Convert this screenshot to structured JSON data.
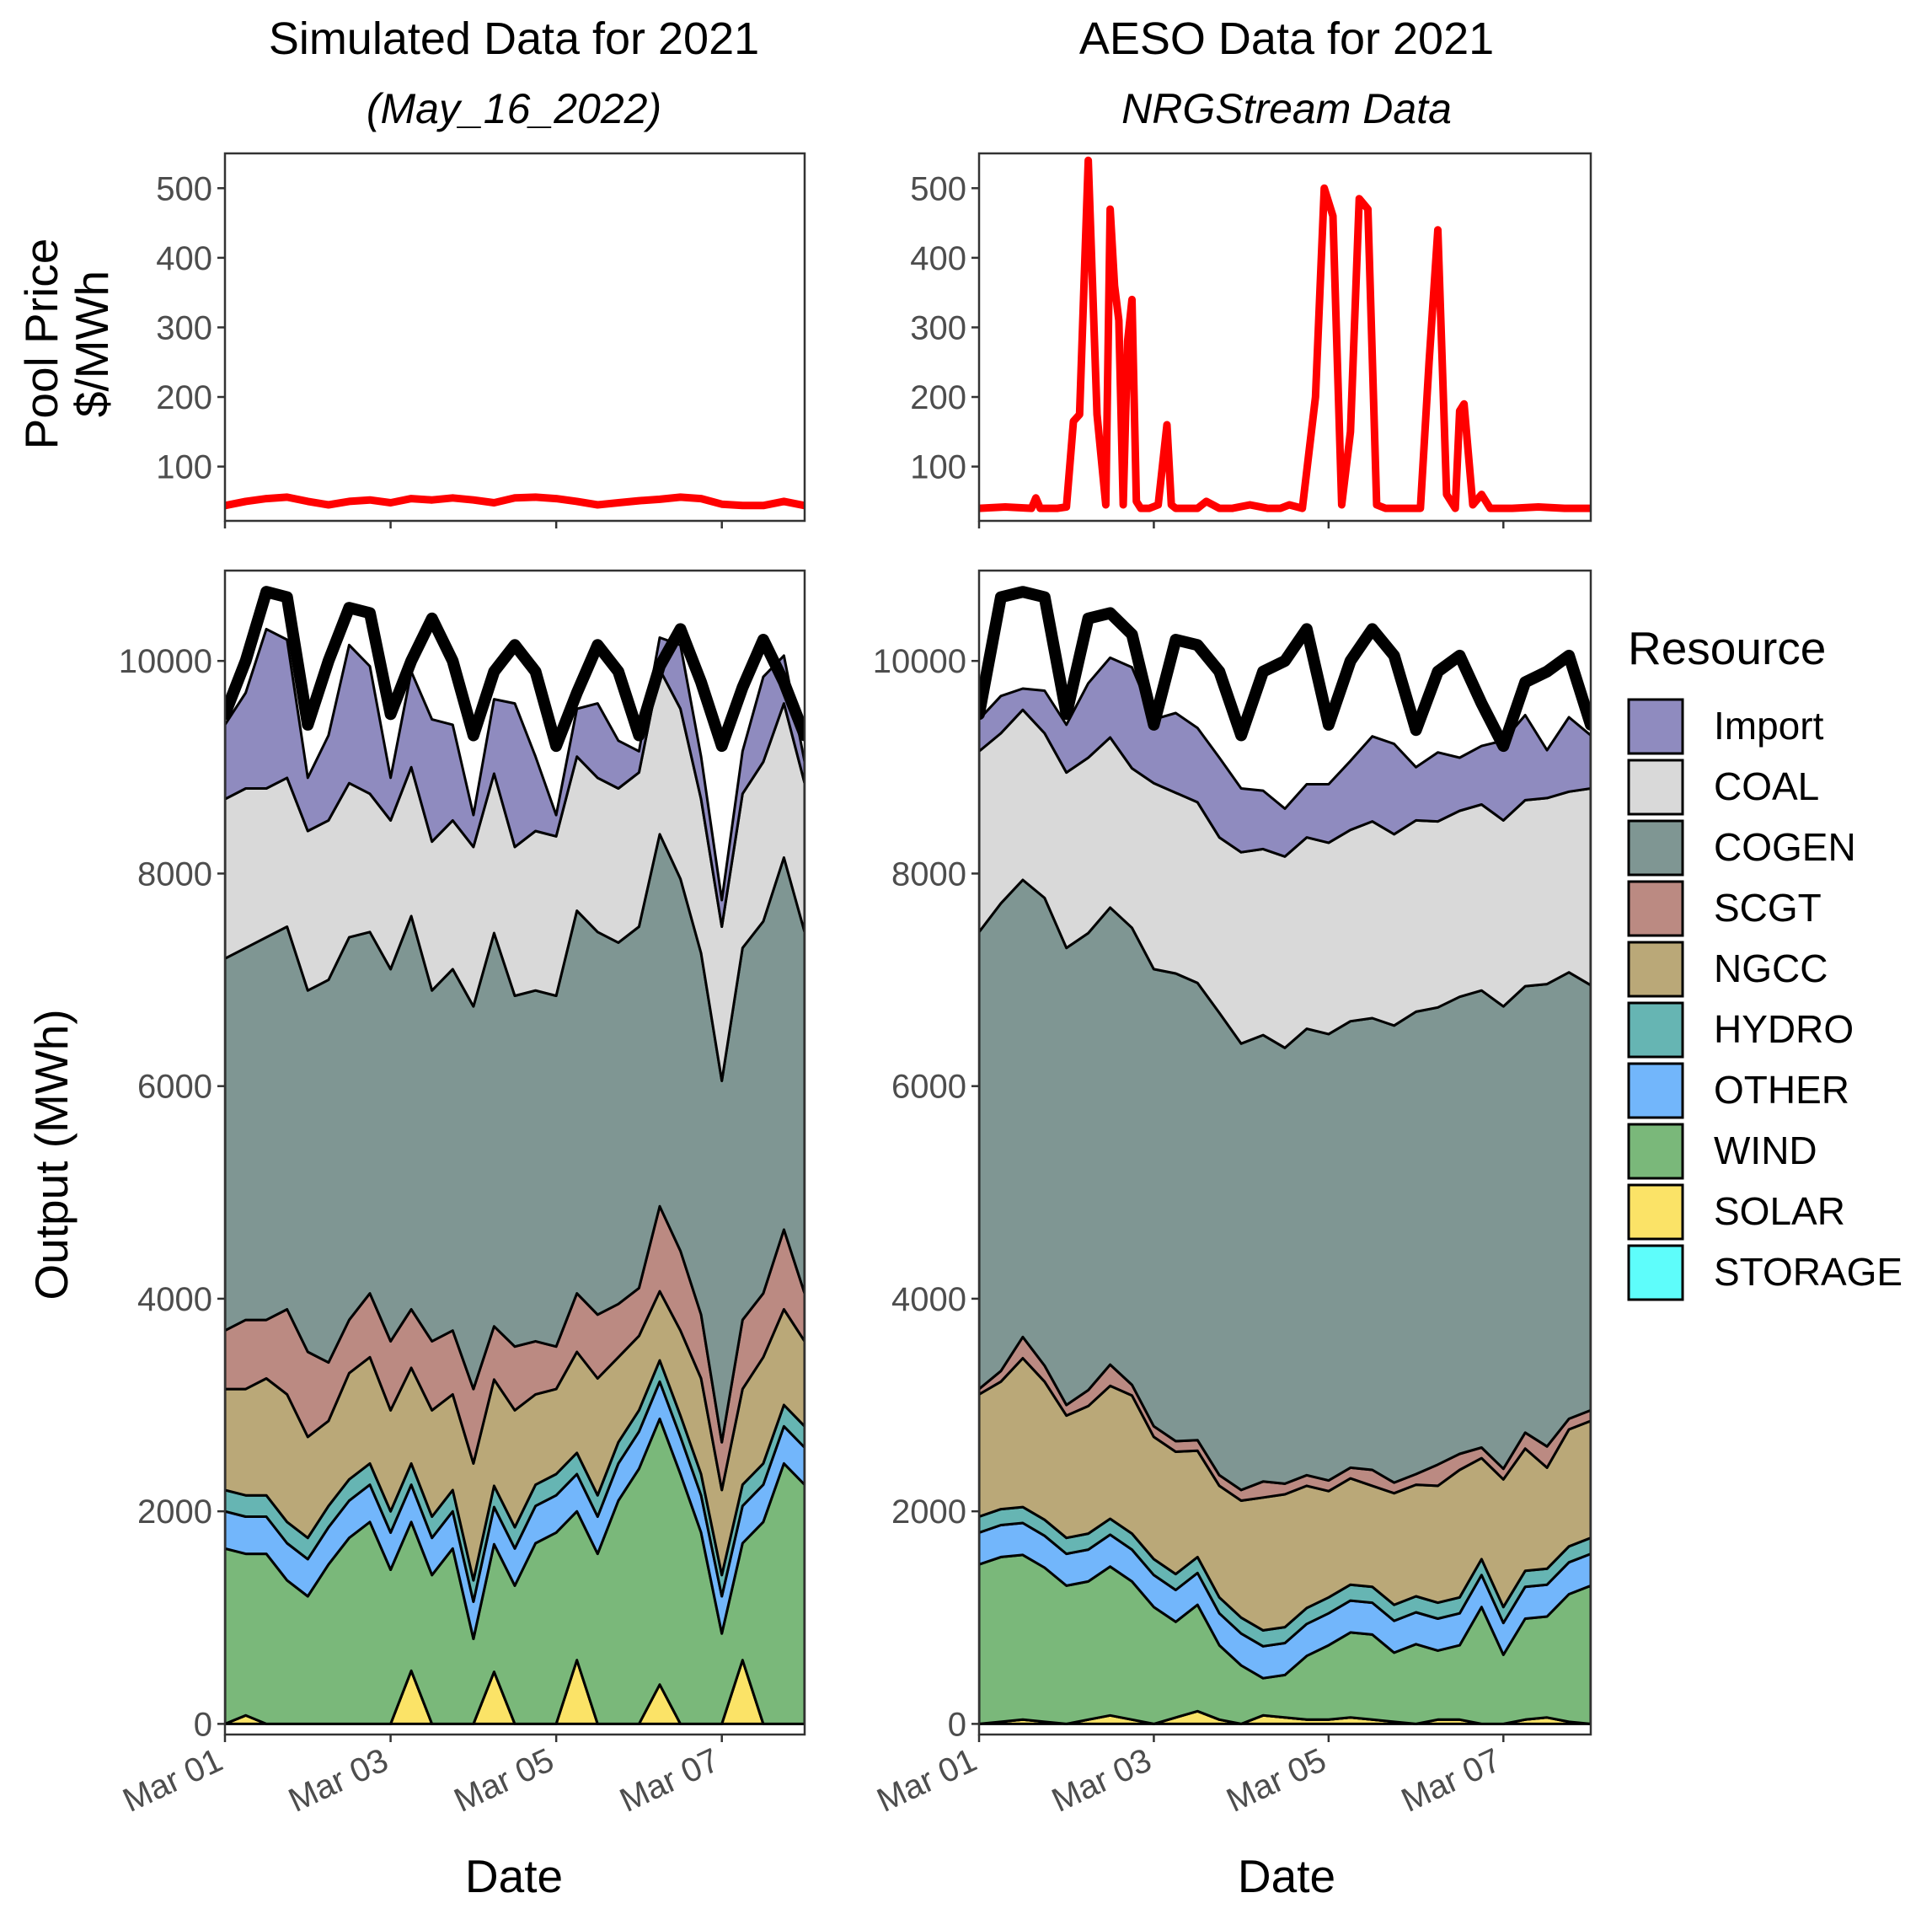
{
  "figure": {
    "left_title": "Simulated Data for 2021",
    "left_subtitle": "(May_16_2022)",
    "right_title": "AESO Data for 2021",
    "right_subtitle": "NRGStream Data",
    "price_ylabel_line1": "Pool Price",
    "price_ylabel_line2": "$/MWh",
    "output_ylabel": "Output (MWh)",
    "xlabel": "Date",
    "legend_title": "Resource"
  },
  "colors": {
    "Import": "#8f8bbf",
    "COAL": "#d9d9d9",
    "COGEN": "#7f9693",
    "SCGT": "#bb8a82",
    "NGCC": "#baa878",
    "HYDRO": "#66b5b3",
    "OTHER": "#72b6fb",
    "WIND": "#7ab87a",
    "SOLAR": "#fbe367",
    "STORAGE": "#5efdfb",
    "price": "#ff0000",
    "demand": "#000000"
  },
  "chart_data": [
    {
      "type": "line",
      "panel": "simulated-price",
      "title": "Simulated Data for 2021",
      "subtitle": "(May_16_2022)",
      "xlabel": "",
      "ylabel": "Pool Price $/MWh",
      "xlim": [
        0,
        7
      ],
      "ylim": [
        22,
        550
      ],
      "yticks": [
        100,
        200,
        300,
        400,
        500
      ],
      "xticks_days": [
        0,
        2,
        4,
        6
      ],
      "grid": false,
      "series": [
        {
          "x": [
            0,
            0.25,
            0.5,
            0.75,
            1,
            1.25,
            1.5,
            1.75,
            2,
            2.25,
            2.5,
            2.75,
            3,
            3.25,
            3.5,
            3.75,
            4,
            4.25,
            4.5,
            4.75,
            5,
            5.25,
            5.5,
            5.75,
            6,
            6.25,
            6.5,
            6.75,
            7
          ],
          "y": [
            44,
            50,
            54,
            56,
            50,
            45,
            50,
            52,
            48,
            54,
            52,
            55,
            52,
            48,
            55,
            56,
            54,
            50,
            45,
            48,
            51,
            53,
            56,
            54,
            46,
            44,
            44,
            50,
            44
          ]
        }
      ]
    },
    {
      "type": "line",
      "panel": "aeso-price",
      "title": "AESO Data for 2021",
      "subtitle": "NRGStream Data",
      "xlabel": "",
      "ylabel": "",
      "xlim": [
        0,
        7
      ],
      "ylim": [
        22,
        550
      ],
      "yticks": [
        100,
        200,
        300,
        400,
        500
      ],
      "xticks_days": [
        0,
        2,
        4,
        6
      ],
      "grid": false,
      "series": [
        {
          "x": [
            0,
            0.3,
            0.6,
            0.65,
            0.7,
            0.9,
            1.0,
            1.08,
            1.15,
            1.25,
            1.35,
            1.45,
            1.5,
            1.55,
            1.6,
            1.65,
            1.7,
            1.75,
            1.8,
            1.85,
            1.9,
            1.95,
            2.05,
            2.15,
            2.2,
            2.25,
            2.35,
            2.5,
            2.6,
            2.75,
            2.9,
            3.1,
            3.3,
            3.45,
            3.55,
            3.7,
            3.85,
            3.95,
            4.05,
            4.15,
            4.25,
            4.35,
            4.45,
            4.55,
            4.65,
            4.75,
            4.85,
            4.95,
            5.05,
            5.15,
            5.25,
            5.35,
            5.45,
            5.5,
            5.55,
            5.65,
            5.75,
            5.85,
            6.1,
            6.4,
            6.7,
            6.85,
            7
          ],
          "y": [
            40,
            42,
            40,
            55,
            40,
            40,
            42,
            165,
            175,
            540,
            175,
            45,
            470,
            360,
            310,
            45,
            280,
            340,
            50,
            40,
            40,
            40,
            45,
            160,
            45,
            40,
            40,
            40,
            50,
            40,
            40,
            45,
            40,
            40,
            45,
            40,
            200,
            500,
            460,
            45,
            150,
            485,
            470,
            45,
            40,
            40,
            40,
            40,
            40,
            250,
            440,
            60,
            40,
            180,
            190,
            45,
            60,
            40,
            40,
            42,
            40,
            40,
            40
          ]
        }
      ]
    },
    {
      "type": "area",
      "panel": "simulated-output",
      "stacked": true,
      "xlabel": "Date",
      "ylabel": "Output (MWh)",
      "xlim": [
        0,
        7
      ],
      "ylim": [
        -100,
        10850
      ],
      "yticks": [
        0,
        2000,
        4000,
        6000,
        8000,
        10000
      ],
      "x_tick_labels": [
        "Mar 01",
        "Mar 03",
        "Mar 05",
        "Mar 07"
      ],
      "xticks_days": [
        0,
        2,
        4,
        6
      ],
      "grid": false,
      "legend_position": "right",
      "x": [
        0,
        0.25,
        0.5,
        0.75,
        1,
        1.25,
        1.5,
        1.75,
        2,
        2.25,
        2.5,
        2.75,
        3,
        3.25,
        3.5,
        3.75,
        4,
        4.25,
        4.5,
        4.75,
        5,
        5.25,
        5.5,
        5.75,
        6,
        6.25,
        6.5,
        6.75,
        7
      ],
      "series": [
        {
          "name": "SOLAR",
          "values": [
            0,
            80,
            0,
            0,
            0,
            0,
            0,
            0,
            0,
            500,
            0,
            0,
            0,
            490,
            0,
            0,
            0,
            600,
            0,
            0,
            0,
            370,
            0,
            0,
            0,
            600,
            0,
            0,
            0
          ]
        },
        {
          "name": "STORAGE",
          "values": [
            0,
            0,
            0,
            0,
            0,
            0,
            0,
            0,
            0,
            0,
            0,
            0,
            0,
            0,
            0,
            0,
            0,
            0,
            0,
            0,
            0,
            0,
            0,
            0,
            0,
            0,
            0,
            0,
            0
          ]
        },
        {
          "name": "WIND",
          "values": [
            1650,
            1520,
            1600,
            1350,
            1200,
            1500,
            1750,
            1900,
            1450,
            1400,
            1400,
            1650,
            800,
            1200,
            1300,
            1700,
            1800,
            1400,
            1600,
            2100,
            2400,
            2500,
            2350,
            1800,
            850,
            1100,
            1900,
            2450,
            2250
          ]
        },
        {
          "name": "OTHER",
          "values": [
            350,
            350,
            350,
            350,
            350,
            350,
            350,
            350,
            350,
            350,
            350,
            350,
            350,
            350,
            350,
            350,
            350,
            350,
            350,
            350,
            350,
            350,
            350,
            350,
            350,
            350,
            350,
            350,
            350
          ]
        },
        {
          "name": "HYDRO",
          "values": [
            200,
            200,
            200,
            200,
            200,
            200,
            200,
            200,
            200,
            200,
            200,
            200,
            200,
            200,
            200,
            200,
            200,
            200,
            200,
            200,
            200,
            200,
            200,
            200,
            200,
            200,
            200,
            200,
            200
          ]
        },
        {
          "name": "NGCC",
          "values": [
            950,
            1000,
            1100,
            1200,
            950,
            800,
            1000,
            1000,
            950,
            900,
            1000,
            900,
            1100,
            1000,
            1100,
            850,
            800,
            950,
            1100,
            800,
            700,
            650,
            800,
            900,
            800,
            900,
            1000,
            900,
            800
          ]
        },
        {
          "name": "SCGT",
          "values": [
            550,
            650,
            550,
            800,
            800,
            550,
            500,
            600,
            650,
            550,
            650,
            600,
            700,
            500,
            600,
            500,
            400,
            550,
            600,
            500,
            450,
            800,
            750,
            600,
            450,
            650,
            600,
            750,
            450
          ]
        },
        {
          "name": "COGEN",
          "values": [
            3500,
            3500,
            3600,
            3600,
            3400,
            3600,
            3600,
            3400,
            3500,
            3700,
            3300,
            3400,
            3600,
            3700,
            3300,
            3300,
            3300,
            3600,
            3600,
            3400,
            3400,
            3500,
            3500,
            3400,
            3400,
            3500,
            3500,
            3500,
            3400
          ]
        },
        {
          "name": "COAL",
          "values": [
            1500,
            1500,
            1400,
            1400,
            1500,
            1500,
            1450,
            1300,
            1400,
            1400,
            1400,
            1400,
            1500,
            1500,
            1400,
            1500,
            1500,
            1450,
            1450,
            1450,
            1450,
            1550,
            1600,
            1450,
            1450,
            1450,
            1500,
            1450,
            1400
          ]
        },
        {
          "name": "Import",
          "values": [
            700,
            900,
            1500,
            1300,
            500,
            800,
            1300,
            1200,
            400,
            900,
            1150,
            900,
            300,
            700,
            1350,
            700,
            200,
            450,
            700,
            450,
            200,
            300,
            600,
            400,
            250,
            400,
            800,
            450,
            200
          ]
        }
      ],
      "demand_line": [
        9500,
        10000,
        10650,
        10600,
        9400,
        10000,
        10500,
        10450,
        9500,
        10000,
        10400,
        10000,
        9300,
        9900,
        10150,
        9900,
        9200,
        9700,
        10150,
        9900,
        9300,
        9950,
        10300,
        9800,
        9200,
        9750,
        10200,
        9800,
        9300
      ]
    },
    {
      "type": "area",
      "panel": "aeso-output",
      "stacked": true,
      "xlabel": "Date",
      "ylabel": "",
      "xlim": [
        0,
        7
      ],
      "ylim": [
        -100,
        10850
      ],
      "yticks": [
        0,
        2000,
        4000,
        6000,
        8000,
        10000
      ],
      "x_tick_labels": [
        "Mar 01",
        "Mar 03",
        "Mar 05",
        "Mar 07"
      ],
      "xticks_days": [
        0,
        2,
        4,
        6
      ],
      "grid": false,
      "legend_position": "right",
      "x": [
        0,
        0.25,
        0.5,
        0.75,
        1,
        1.25,
        1.5,
        1.75,
        2,
        2.25,
        2.5,
        2.75,
        3,
        3.25,
        3.5,
        3.75,
        4,
        4.25,
        4.5,
        4.75,
        5,
        5.25,
        5.5,
        5.75,
        6,
        6.25,
        6.5,
        6.75,
        7
      ],
      "series": [
        {
          "name": "SOLAR",
          "values": [
            0,
            20,
            40,
            20,
            0,
            40,
            80,
            40,
            0,
            60,
            120,
            40,
            0,
            80,
            60,
            40,
            40,
            60,
            40,
            20,
            0,
            40,
            40,
            0,
            0,
            40,
            60,
            20,
            0
          ]
        },
        {
          "name": "STORAGE",
          "values": [
            0,
            0,
            0,
            0,
            0,
            0,
            0,
            0,
            0,
            0,
            0,
            0,
            0,
            0,
            0,
            0,
            0,
            0,
            0,
            0,
            0,
            0,
            0,
            0,
            0,
            0,
            0,
            0,
            0
          ]
        },
        {
          "name": "WIND",
          "values": [
            1500,
            1550,
            1550,
            1450,
            1300,
            1300,
            1400,
            1300,
            1100,
            900,
            1000,
            700,
            550,
            350,
            400,
            600,
            700,
            800,
            800,
            650,
            750,
            650,
            700,
            1100,
            650,
            950,
            950,
            1200,
            1300
          ]
        },
        {
          "name": "OTHER",
          "values": [
            300,
            300,
            300,
            300,
            300,
            300,
            300,
            300,
            300,
            300,
            300,
            300,
            300,
            300,
            300,
            300,
            300,
            300,
            300,
            300,
            300,
            300,
            300,
            300,
            300,
            300,
            300,
            300,
            300
          ]
        },
        {
          "name": "HYDRO",
          "values": [
            150,
            150,
            150,
            150,
            150,
            150,
            150,
            150,
            150,
            150,
            150,
            150,
            150,
            150,
            150,
            150,
            150,
            150,
            150,
            150,
            150,
            150,
            150,
            150,
            150,
            150,
            150,
            150,
            150
          ]
        },
        {
          "name": "NGCC",
          "values": [
            1150,
            1200,
            1400,
            1300,
            1150,
            1200,
            1250,
            1300,
            1150,
            1150,
            1000,
            1050,
            1100,
            1250,
            1250,
            1150,
            1000,
            1000,
            950,
            1050,
            1050,
            1100,
            1200,
            950,
            1200,
            1150,
            950,
            1100,
            1100
          ]
        },
        {
          "name": "SCGT",
          "values": [
            50,
            100,
            200,
            150,
            100,
            150,
            200,
            100,
            100,
            100,
            100,
            100,
            100,
            150,
            100,
            100,
            100,
            100,
            150,
            100,
            100,
            200,
            150,
            100,
            100,
            150,
            200,
            100,
            100
          ]
        },
        {
          "name": "COGEN",
          "values": [
            4300,
            4400,
            4300,
            4400,
            4300,
            4300,
            4300,
            4300,
            4300,
            4400,
            4300,
            4350,
            4200,
            4200,
            4100,
            4200,
            4200,
            4200,
            4250,
            4300,
            4350,
            4300,
            4300,
            4300,
            4350,
            4200,
            4350,
            4200,
            4000
          ]
        },
        {
          "name": "COAL",
          "values": [
            1700,
            1600,
            1600,
            1550,
            1650,
            1650,
            1600,
            1500,
            1750,
            1700,
            1700,
            1650,
            1800,
            1750,
            1800,
            1800,
            1800,
            1800,
            1850,
            1800,
            1800,
            1750,
            1750,
            1750,
            1750,
            1750,
            1750,
            1700,
            1850
          ]
        },
        {
          "name": "Import",
          "values": [
            300,
            350,
            200,
            400,
            450,
            700,
            750,
            950,
            600,
            750,
            700,
            750,
            600,
            550,
            450,
            500,
            550,
            650,
            800,
            850,
            500,
            650,
            500,
            550,
            750,
            800,
            450,
            700,
            500
          ]
        }
      ],
      "demand_line": [
        9500,
        10600,
        10650,
        10600,
        9500,
        10400,
        10450,
        10250,
        9400,
        10200,
        10150,
        9900,
        9300,
        9900,
        10000,
        10300,
        9400,
        10000,
        10300,
        10050,
        9350,
        9900,
        10050,
        9600,
        9200,
        9800,
        9900,
        10050,
        9400
      ]
    }
  ]
}
